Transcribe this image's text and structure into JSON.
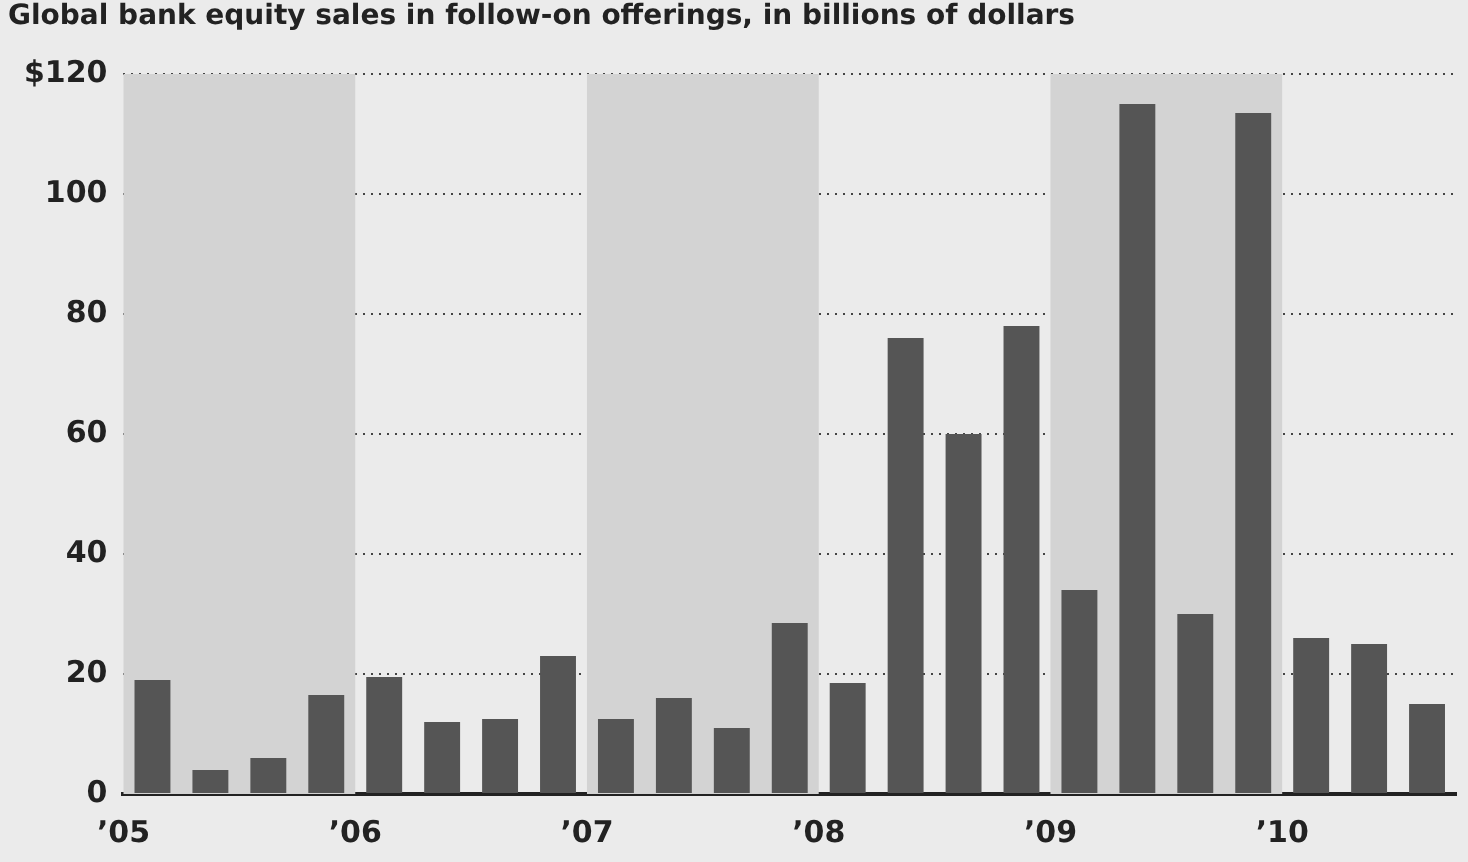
{
  "chart_data": {
    "type": "bar",
    "title": "Global bank equity sales in follow-on offerings, in billions of dollars",
    "x": [
      2005.125,
      2005.375,
      2005.625,
      2005.875,
      2006.125,
      2006.375,
      2006.625,
      2006.875,
      2007.125,
      2007.375,
      2007.625,
      2007.875,
      2008.125,
      2008.375,
      2008.625,
      2008.875,
      2009.125,
      2009.375,
      2009.625,
      2009.875,
      2010.125,
      2010.375,
      2010.625
    ],
    "values": [
      19,
      4,
      6,
      16.5,
      19.5,
      12,
      12.5,
      23,
      12.5,
      16,
      11,
      28.5,
      18.5,
      76,
      60,
      78,
      34,
      115,
      30,
      113.5,
      26,
      25,
      15
    ],
    "color": "#555555",
    "xlim": [
      2005,
      2010.75
    ],
    "xticks": [
      {
        "value": 2005,
        "label": "’05"
      },
      {
        "value": 2006,
        "label": "’06"
      },
      {
        "value": 2007,
        "label": "’07"
      },
      {
        "value": 2008,
        "label": "’08"
      },
      {
        "value": 2009,
        "label": "’09"
      },
      {
        "value": 2010,
        "label": "’10"
      }
    ],
    "ylim": [
      0,
      120
    ],
    "yticks": [
      0,
      20,
      40,
      60,
      80,
      100,
      {
        "value": 120,
        "label": "$120"
      }
    ],
    "grid": "y",
    "bands": [
      {
        "axis": "x",
        "from": 2005,
        "to": 2006,
        "color": "#d3d3d3"
      },
      {
        "axis": "x",
        "from": 2007,
        "to": 2008,
        "color": "#d3d3d3"
      },
      {
        "axis": "x",
        "from": 2009,
        "to": 2010,
        "color": "#d3d3d3"
      }
    ]
  }
}
